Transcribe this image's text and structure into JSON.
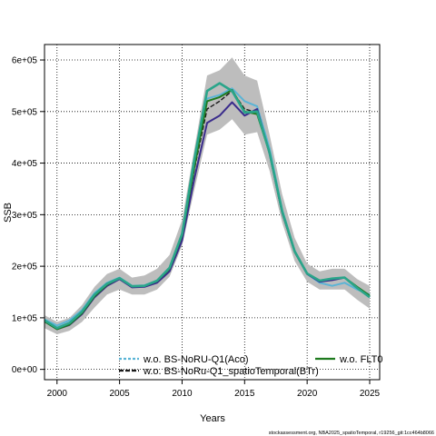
{
  "chart_data": {
    "type": "line",
    "xlabel": "Years",
    "ylabel": "SSB",
    "xlim": [
      1999,
      2025.8
    ],
    "ylim": [
      -20000,
      630000
    ],
    "x_ticks": [
      2000,
      2005,
      2010,
      2015,
      2020,
      2025
    ],
    "y_ticks": [
      0,
      100000,
      200000,
      300000,
      400000,
      500000,
      600000
    ],
    "y_tick_labels": [
      "0e+00",
      "1e+05",
      "2e+05",
      "3e+05",
      "4e+05",
      "5e+05",
      "6e+05"
    ],
    "grid": true,
    "x": [
      1999,
      2000,
      2001,
      2002,
      2003,
      2004,
      2005,
      2006,
      2007,
      2008,
      2009,
      2010,
      2011,
      2012,
      2013,
      2014,
      2015,
      2016,
      2017,
      2018,
      2019,
      2020,
      2021,
      2022,
      2023,
      2024,
      2025
    ],
    "confidence_band": {
      "lower": [
        80000,
        68000,
        75000,
        92000,
        120000,
        145000,
        155000,
        145000,
        145000,
        155000,
        180000,
        240000,
        350000,
        455000,
        465000,
        485000,
        455000,
        460000,
        385000,
        285000,
        210000,
        170000,
        155000,
        155000,
        155000,
        135000,
        118000
      ],
      "upper": [
        105000,
        92000,
        100000,
        125000,
        160000,
        185000,
        195000,
        178000,
        182000,
        195000,
        222000,
        290000,
        430000,
        570000,
        580000,
        605000,
        570000,
        560000,
        455000,
        340000,
        255000,
        205000,
        190000,
        195000,
        195000,
        175000,
        162000
      ]
    },
    "series": [
      {
        "name": "w.o. BS-NoRU-Q1(Aco)",
        "color": "#5ab4d6",
        "values": [
          97000,
          85000,
          95000,
          115000,
          148000,
          168000,
          178000,
          162000,
          163000,
          172000,
          197000,
          262000,
          395000,
          525000,
          532000,
          545000,
          520000,
          510000,
          428000,
          310000,
          230000,
          185000,
          168000,
          162000,
          168000,
          155000,
          145000
        ]
      },
      {
        "name": "w.o. BS-NoRu-Q1_spatioTemporal(BTr)",
        "color": "#1a1a1a",
        "values": [
          93000,
          78000,
          87000,
          108000,
          141000,
          163000,
          176000,
          160000,
          161000,
          170000,
          194000,
          258000,
          390000,
          505000,
          520000,
          540000,
          505000,
          498000,
          420000,
          305000,
          228000,
          185000,
          172000,
          176000,
          178000,
          160000,
          143000
        ]
      },
      {
        "name": "",
        "color": "#3a2c8c",
        "values": [
          93000,
          78000,
          86000,
          107000,
          140000,
          162000,
          175000,
          159000,
          160000,
          168000,
          190000,
          250000,
          372000,
          478000,
          492000,
          518000,
          492000,
          505000,
          418000,
          304000,
          228000,
          185000,
          170000,
          173000,
          178000,
          158000,
          140000
        ]
      },
      {
        "name": "w.o. FLT0",
        "color": "#1e7a1e",
        "values": [
          93000,
          78000,
          87000,
          109000,
          142000,
          164000,
          177000,
          161000,
          162000,
          171000,
          195000,
          260000,
          395000,
          520000,
          528000,
          542000,
          500000,
          495000,
          420000,
          305000,
          228000,
          186000,
          172000,
          176000,
          178000,
          160000,
          143000
        ]
      },
      {
        "name": "",
        "color": "#2aa58a",
        "values": [
          95000,
          80000,
          90000,
          112000,
          145000,
          166000,
          177000,
          161000,
          162000,
          172000,
          197000,
          263000,
          410000,
          540000,
          555000,
          540000,
          498000,
          500000,
          420000,
          307000,
          229000,
          186000,
          172000,
          176000,
          178000,
          158000,
          140000
        ]
      }
    ]
  },
  "footer_text": "stockassessment.org, NBA2025_spatioTemporal, r19256_git:1cc464b8066"
}
